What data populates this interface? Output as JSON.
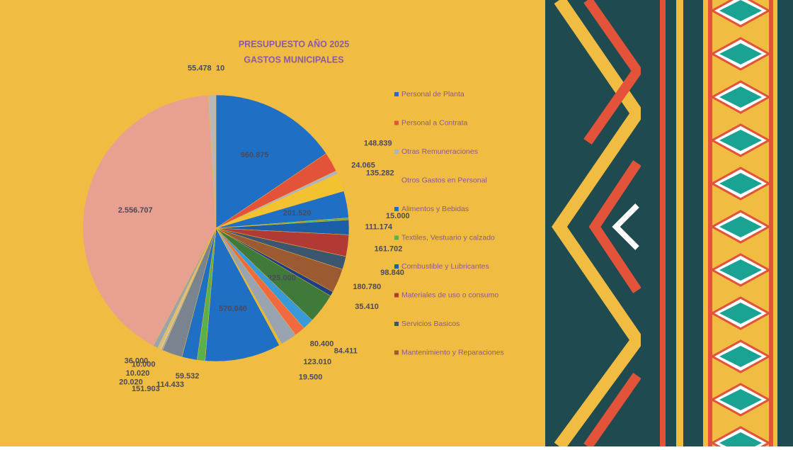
{
  "chart_data": {
    "type": "pie",
    "title": "PRESUPUESTO AÑO 2025",
    "subtitle": "GASTOS MUNICIPALES",
    "categories": [
      null,
      "Personal de Planta",
      "Personal a Contrata",
      "Otras Remuneraciones",
      "Otros Gastos en Personal",
      "Alimentos y Bebidas",
      "Textiles, Vestuario y calzado",
      "Combustible y Lubricantes",
      "Materiales de uso o consumo",
      "Servicios Basicos",
      "Mantenimiento y Reparaciones",
      null,
      null,
      null,
      null,
      null,
      null,
      null,
      null,
      null,
      null,
      null,
      null,
      null,
      null,
      null,
      null
    ],
    "values": [
      10,
      960875,
      148839,
      24065,
      135282,
      201520,
      15000,
      111174,
      161702,
      98840,
      180780,
      35410,
      225000,
      84411,
      80400,
      123010,
      19500,
      570040,
      59532,
      114433,
      151903,
      10000,
      10020,
      20020,
      36000,
      2556707,
      55478
    ],
    "value_labels": [
      "10",
      "960.875",
      "148.839",
      "24.065",
      "135.282",
      "201.520",
      "15.000",
      "111.174",
      "161.702",
      "98.840",
      "180.780",
      "35.410",
      "225.000",
      "84.411",
      "80.400",
      "123.010",
      "19.500",
      "570.040",
      "59.532",
      "114.433",
      "151.903",
      "10.000",
      "10.020",
      "20.020",
      "36.000",
      "2.556.707",
      "55.478"
    ],
    "colors": [
      "#b0b0b0",
      "#1f6fc5",
      "#e2533a",
      "#a9b4c8",
      "#f2c230",
      "#1f6fc5",
      "#5ab04a",
      "#1a5fa8",
      "#b13a35",
      "#3d5670",
      "#9c5a32",
      "#1b3d8a",
      "#3f7a3a",
      "#3a9ad9",
      "#ef6a3f",
      "#9aa3b0",
      "#e8b82a",
      "#1f6fc5",
      "#5ab04a",
      "#1f6fc5",
      "#7a8490",
      "#9aa3b0",
      "#cccccc",
      "#d8c07a",
      "#9aa3b0",
      "#e8a090",
      "#b8b8b8"
    ],
    "legend": "right"
  }
}
